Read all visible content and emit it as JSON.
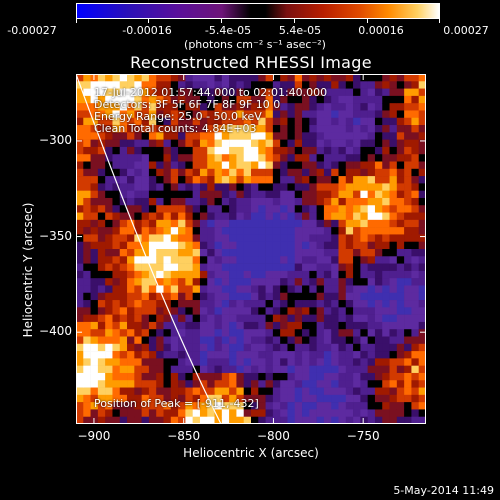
{
  "colorbar": {
    "ticks": [
      "-0.00027",
      "-0.00016",
      "-5.4e-05",
      "5.4e-05",
      "0.00016",
      "0.00027"
    ],
    "units": "(photons cm⁻² s⁻¹ asec⁻²)"
  },
  "annotations": {
    "time": "17-Jul-2012 01:57:44.000 to 02:01:40.000",
    "detectors": "Detectors: 3F 5F 6F 7F 8F 9F 10 0",
    "energy": "Energy Range: 25.0 - 50.0 keV",
    "method": "Clean     Total counts: 4.84E+03",
    "peak": "Position of Peak = [-911,-432]"
  },
  "footer": "5-May-2014 11:49",
  "colors": {
    "background": "#000000",
    "text": "#ffffff"
  },
  "chart_data": {
    "type": "heatmap",
    "title": "Reconstructed RHESSI Image",
    "xlabel": "Heliocentric X (arcsec)",
    "ylabel": "Heliocentric Y (arcsec)",
    "xlim": [
      -910,
      -715
    ],
    "ylim": [
      -448,
      -265
    ],
    "x_ticks": [
      -900,
      -850,
      -800,
      -750
    ],
    "y_ticks": [
      -300,
      -350,
      -400
    ],
    "colorbar_range": [
      -0.00027,
      0.00027
    ],
    "peak": [
      -911,
      -432
    ]
  }
}
